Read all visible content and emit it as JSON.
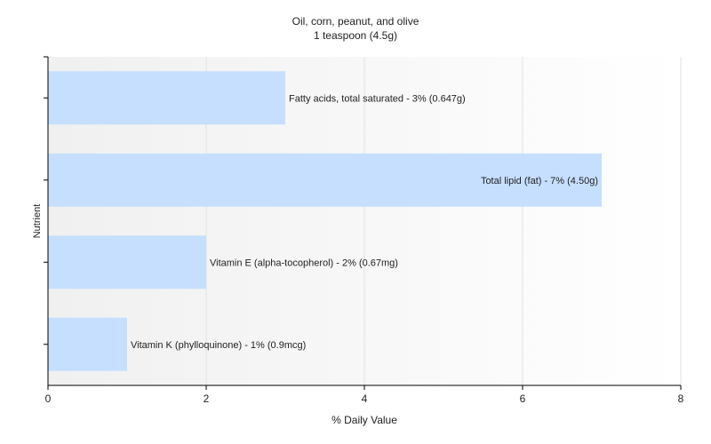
{
  "chart_data": {
    "type": "bar",
    "orientation": "horizontal",
    "title": "Oil, corn, peanut, and olive",
    "subtitle": "1 teaspoon (4.5g)",
    "xlabel": "% Daily Value",
    "ylabel": "Nutrient",
    "xlim": [
      0,
      8
    ],
    "xticks": [
      0,
      2,
      4,
      6,
      8
    ],
    "grid": true,
    "bar_color": "#c6dfff",
    "categories": [
      "Fatty acids, total saturated",
      "Total lipid (fat)",
      "Vitamin E (alpha-tocopherol)",
      "Vitamin K (phylloquinone)"
    ],
    "values": [
      3,
      7,
      2,
      1
    ],
    "labels": [
      "Fatty acids, total saturated - 3% (0.647g)",
      "Total lipid (fat) - 7% (4.50g)",
      "Vitamin E (alpha-tocopherol) - 2% (0.67mg)",
      "Vitamin K (phylloquinone) - 1% (0.9mcg)"
    ]
  }
}
